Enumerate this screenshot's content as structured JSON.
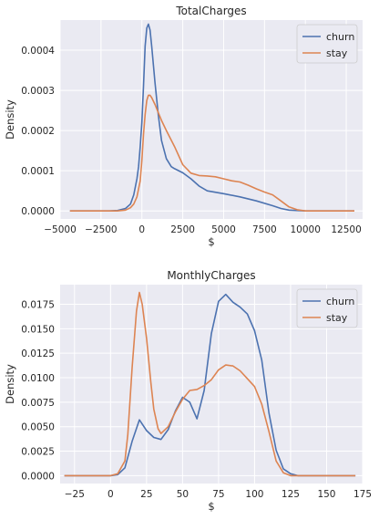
{
  "chart_data": [
    {
      "type": "line",
      "title": "TotalCharges",
      "xlabel": "$",
      "ylabel": "Density",
      "xlim": [
        -5000,
        13500
      ],
      "ylim": [
        -2e-05,
        0.000475
      ],
      "xticks": [
        -5000,
        -2500,
        0,
        2500,
        5000,
        7500,
        10000,
        12500
      ],
      "xtick_labels": [
        "−5000",
        "−2500",
        "0",
        "2500",
        "5000",
        "7500",
        "10000",
        "12500"
      ],
      "yticks": [
        0,
        0.0001,
        0.0002,
        0.0003,
        0.0004
      ],
      "ytick_labels": [
        "0.0000",
        "0.0001",
        "0.0002",
        "0.0003",
        "0.0004"
      ],
      "grid": true,
      "legend_position": "top-right",
      "series": [
        {
          "name": "churn",
          "color": "#4c72b0",
          "x": [
            -4400,
            -2000,
            -1500,
            -1000,
            -700,
            -500,
            -300,
            -200,
            -100,
            0,
            100,
            200,
            300,
            400,
            500,
            600,
            800,
            1000,
            1200,
            1500,
            1800,
            2000,
            2500,
            3000,
            3500,
            4000,
            5000,
            6000,
            7000,
            8000,
            8500,
            9000,
            10000,
            11000,
            13000
          ],
          "y": [
            0,
            0,
            1e-06,
            6e-06,
            1.7e-05,
            4e-05,
            8e-05,
            0.00011,
            0.00016,
            0.00022,
            0.00031,
            0.00041,
            0.000455,
            0.000465,
            0.00045,
            0.00041,
            0.00032,
            0.00024,
            0.000175,
            0.00013,
            0.00011,
            0.000105,
            9.5e-05,
            8e-05,
            6.2e-05,
            5e-05,
            4.3e-05,
            3.5e-05,
            2.5e-05,
            1.3e-05,
            6e-06,
            2e-06,
            0,
            0,
            0
          ]
        },
        {
          "name": "stay",
          "color": "#dd8452",
          "x": [
            -4400,
            -2000,
            -1500,
            -1000,
            -700,
            -500,
            -300,
            -100,
            0,
            100,
            200,
            300,
            400,
            500,
            600,
            800,
            1000,
            1200,
            1500,
            2000,
            2500,
            3000,
            3500,
            4000,
            4500,
            5000,
            5500,
            6000,
            6500,
            7000,
            7500,
            8000,
            8500,
            9000,
            9500,
            10000,
            11000,
            13000
          ],
          "y": [
            0,
            0,
            0,
            2e-06,
            8e-06,
            1.7e-05,
            3.5e-05,
            7.5e-05,
            0.000125,
            0.00019,
            0.00024,
            0.000275,
            0.000288,
            0.000288,
            0.000282,
            0.000265,
            0.000245,
            0.000225,
            0.0002,
            0.00016,
            0.000115,
            9.4e-05,
            8.8e-05,
            8.7e-05,
            8.5e-05,
            8e-05,
            7.5e-05,
            7.2e-05,
            6.4e-05,
            5.5e-05,
            4.7e-05,
            4e-05,
            2.5e-05,
            1e-05,
            3e-06,
            0,
            0,
            0
          ]
        }
      ]
    },
    {
      "type": "line",
      "title": "MonthlyCharges",
      "xlabel": "$",
      "ylabel": "Density",
      "xlim": [
        -35,
        175
      ],
      "ylim": [
        -0.0008,
        0.0195
      ],
      "xticks": [
        -25,
        0,
        25,
        50,
        75,
        100,
        125,
        150,
        175
      ],
      "xtick_labels": [
        "−25",
        "0",
        "25",
        "50",
        "75",
        "100",
        "125",
        "150",
        "175"
      ],
      "yticks": [
        0,
        0.0025,
        0.005,
        0.0075,
        0.01,
        0.0125,
        0.015,
        0.0175
      ],
      "ytick_labels": [
        "0.0000",
        "0.0025",
        "0.0050",
        "0.0075",
        "0.0100",
        "0.0125",
        "0.0150",
        "0.0175"
      ],
      "grid": true,
      "legend_position": "top-right",
      "series": [
        {
          "name": "churn",
          "color": "#4c72b0",
          "x": [
            -32,
            0,
            5,
            10,
            15,
            20,
            25,
            30,
            35,
            40,
            45,
            50,
            55,
            60,
            65,
            70,
            75,
            80,
            85,
            90,
            95,
            100,
            105,
            110,
            115,
            120,
            125,
            130,
            140,
            170
          ],
          "y": [
            0,
            0,
            0.0001,
            0.0008,
            0.0035,
            0.0057,
            0.0046,
            0.0039,
            0.0037,
            0.0047,
            0.0066,
            0.008,
            0.0075,
            0.0058,
            0.0087,
            0.0145,
            0.0178,
            0.0185,
            0.0177,
            0.0172,
            0.0165,
            0.0148,
            0.0118,
            0.0064,
            0.0026,
            0.0007,
            0.0002,
            0,
            0,
            0
          ]
        },
        {
          "name": "stay",
          "color": "#dd8452",
          "x": [
            -32,
            0,
            5,
            10,
            12,
            15,
            18,
            20,
            22,
            25,
            28,
            30,
            33,
            35,
            40,
            45,
            50,
            55,
            60,
            65,
            70,
            75,
            80,
            85,
            90,
            95,
            100,
            105,
            110,
            115,
            120,
            125,
            130,
            140,
            170
          ],
          "y": [
            0,
            0,
            0.0002,
            0.0015,
            0.0042,
            0.011,
            0.0168,
            0.0187,
            0.0175,
            0.014,
            0.0095,
            0.0068,
            0.0048,
            0.0043,
            0.005,
            0.0065,
            0.0078,
            0.0087,
            0.0088,
            0.0092,
            0.0098,
            0.0108,
            0.0113,
            0.0112,
            0.0107,
            0.0099,
            0.0091,
            0.0073,
            0.0045,
            0.0015,
            0.0003,
            0,
            0,
            0,
            0
          ]
        }
      ]
    }
  ]
}
